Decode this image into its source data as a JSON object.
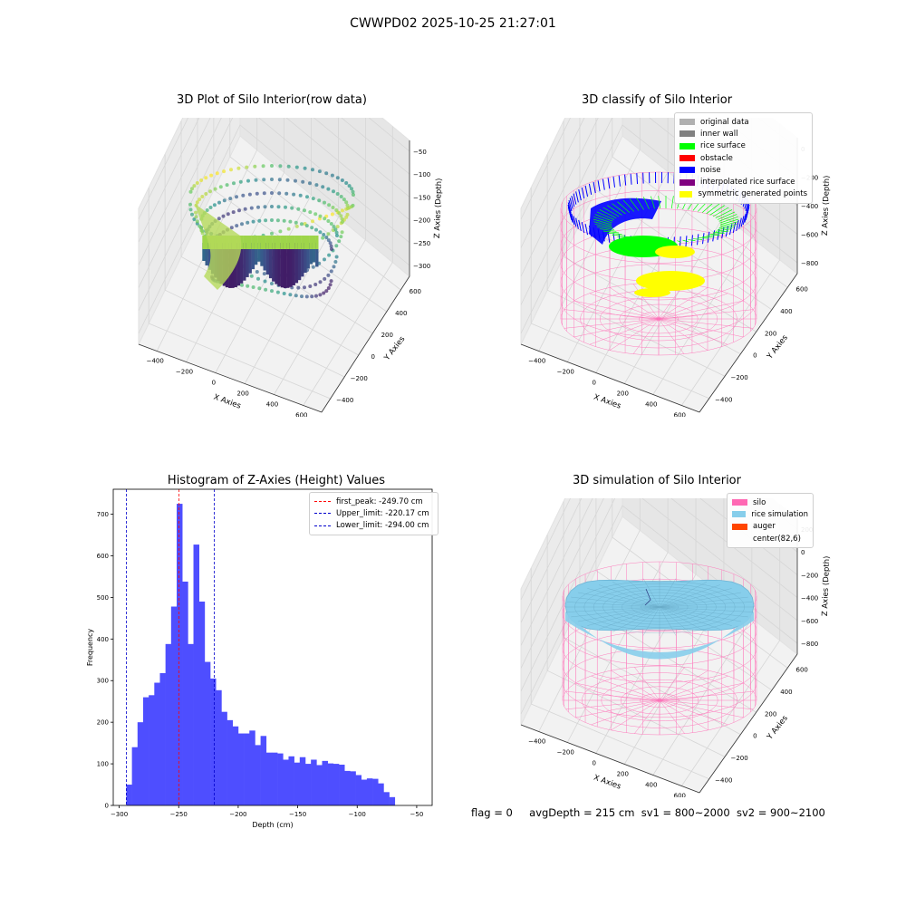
{
  "suptitle": "CWWPD02 2025-10-25 21:27:01",
  "colors": {
    "hist_bar": "#4e4eff",
    "peak_line": "#ff0000",
    "limit_line": "#0000cc",
    "silo_wire": "#ff69b4",
    "rice_sim": "#87ceeb",
    "auger": "#ff4500",
    "rice_surface": "#00ff00",
    "noise": "#0000ff",
    "symmetric": "#ffff00",
    "original": "#b0b0b0",
    "inner_wall": "#808080",
    "obstacle": "#ff0000",
    "interpolated": "#800080"
  },
  "chart_data": [
    {
      "type": "scatter",
      "projection": "3d",
      "title": "3D Plot of Silo Interior(row data)",
      "xlabel": "X Axies",
      "ylabel": "Y Axies",
      "zlabel": "Z Axies (Depth)",
      "x_ticks": [
        "−400",
        "−200",
        "0",
        "200",
        "400",
        "600"
      ],
      "y_ticks": [
        "−400",
        "−200",
        "0",
        "200",
        "400",
        "600"
      ],
      "z_ticks": [
        "−50",
        "−100",
        "−150",
        "−200",
        "−250",
        "−300"
      ],
      "colormap": "viridis",
      "zlim": [
        -310,
        -45
      ]
    },
    {
      "type": "scatter",
      "projection": "3d",
      "title": "3D classify of Silo Interior",
      "xlabel": "X Axies",
      "ylabel": "Y Axies",
      "zlabel": "Z Axies (Depth)",
      "x_ticks": [
        "−400",
        "−200",
        "0",
        "200",
        "400",
        "600"
      ],
      "y_ticks": [
        "−400",
        "−200",
        "0",
        "200",
        "400",
        "600"
      ],
      "z_ticks": [
        "0",
        "−200",
        "−400",
        "−600",
        "−800"
      ],
      "legend": [
        "original data",
        "inner wall",
        "rice surface",
        "obstacle",
        "noise",
        "interpolated rice surface",
        "symmetric generated points"
      ],
      "legend_position": "top-right"
    },
    {
      "type": "bar",
      "title": "Histogram of Z-Axies (Height) Values",
      "xlabel": "Depth (cm)",
      "ylabel": "Frequency",
      "x_ticks": [
        "−300",
        "−250",
        "−200",
        "−150",
        "−100",
        "−50"
      ],
      "y_ticks": [
        "0",
        "100",
        "200",
        "300",
        "400",
        "500",
        "600",
        "700"
      ],
      "xlim": [
        -305,
        -37
      ],
      "ylim": [
        0,
        760
      ],
      "bin_start": -294,
      "bin_width": 4.7,
      "values": [
        50,
        140,
        200,
        260,
        265,
        295,
        318,
        388,
        478,
        725,
        538,
        388,
        627,
        490,
        345,
        305,
        277,
        225,
        205,
        190,
        173,
        173,
        180,
        145,
        167,
        127,
        127,
        125,
        110,
        118,
        103,
        116,
        100,
        110,
        97,
        107,
        101,
        100,
        98,
        83,
        82,
        73,
        62,
        65,
        64,
        53,
        32,
        20
      ],
      "vlines": [
        {
          "label": "first_peak: -249.70 cm",
          "x": -249.7,
          "color": "#ff0000"
        },
        {
          "label": "Upper_limit: -220.17 cm",
          "x": -220.17,
          "color": "#0000cc"
        },
        {
          "label": "Lower_limit: -294.00 cm",
          "x": -294.0,
          "color": "#0000cc"
        }
      ],
      "legend_position": "top-right"
    },
    {
      "type": "scatter",
      "projection": "3d",
      "title": "3D simulation of Silo Interior",
      "xlabel": "X Axies",
      "ylabel": "Y Axies",
      "zlabel": "Z Axies (Depth)",
      "x_ticks": [
        "−400",
        "−200",
        "0",
        "200",
        "400",
        "600"
      ],
      "y_ticks": [
        "−400",
        "−200",
        "0",
        "200",
        "400",
        "600"
      ],
      "z_ticks": [
        "200",
        "0",
        "−200",
        "−400",
        "−600",
        "−800"
      ],
      "legend": [
        "silo",
        "rice simulation",
        "auger",
        "center(82,6)"
      ],
      "legend_position": "top-right"
    }
  ],
  "footer": {
    "flag": "flag = 0",
    "avg": "avgDepth = 215 cm",
    "sv1": "sv1 = 800~2000",
    "sv2": "sv2 = 900~2100"
  }
}
